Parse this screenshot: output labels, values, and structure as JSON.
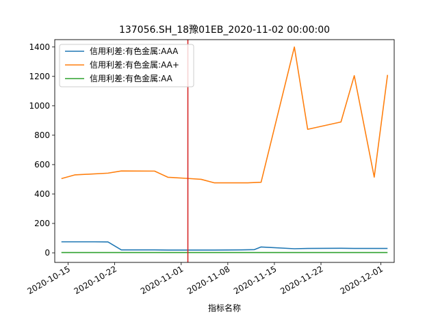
{
  "chart_data": {
    "type": "line",
    "title": "137056.SH_18豫01EB_2020-11-02 00:00:00",
    "xlabel": "指标名称",
    "ylabel": "",
    "x_ticks": [
      "2020-10-15",
      "2020-10-22",
      "2020-11-01",
      "2020-11-08",
      "2020-11-15",
      "2020-11-22",
      "2020-12-01"
    ],
    "y_ticks": [
      0,
      200,
      400,
      600,
      800,
      1000,
      1200,
      1400
    ],
    "xlim": [
      "2020-10-13",
      "2020-12-03"
    ],
    "ylim": [
      -65,
      1450
    ],
    "marker_date": "2020-11-02",
    "marker_color": "#d62728",
    "legend_position": "top-left",
    "grid": false,
    "series": [
      {
        "name": "信用利差:有色金属:AAA",
        "color": "#1f77b4",
        "points": [
          [
            "2020-10-14",
            75
          ],
          [
            "2020-10-16",
            75
          ],
          [
            "2020-10-19",
            75
          ],
          [
            "2020-10-21",
            74
          ],
          [
            "2020-10-23",
            20
          ],
          [
            "2020-10-28",
            20
          ],
          [
            "2020-10-30",
            19
          ],
          [
            "2020-11-03",
            19
          ],
          [
            "2020-11-05",
            19
          ],
          [
            "2020-11-06",
            19
          ],
          [
            "2020-11-10",
            20
          ],
          [
            "2020-11-12",
            22
          ],
          [
            "2020-11-13",
            40
          ],
          [
            "2020-11-18",
            28
          ],
          [
            "2020-11-20",
            30
          ],
          [
            "2020-11-25",
            31
          ],
          [
            "2020-11-27",
            30
          ],
          [
            "2020-11-30",
            30
          ],
          [
            "2020-12-02",
            30
          ]
        ]
      },
      {
        "name": "信用利差:有色金属:AA+",
        "color": "#ff7f0e",
        "points": [
          [
            "2020-10-14",
            505
          ],
          [
            "2020-10-16",
            530
          ],
          [
            "2020-10-21",
            542
          ],
          [
            "2020-10-23",
            557
          ],
          [
            "2020-10-28",
            556
          ],
          [
            "2020-10-30",
            514
          ],
          [
            "2020-11-02",
            506
          ],
          [
            "2020-11-04",
            500
          ],
          [
            "2020-11-06",
            476
          ],
          [
            "2020-11-11",
            476
          ],
          [
            "2020-11-13",
            480
          ],
          [
            "2020-11-18",
            1400
          ],
          [
            "2020-11-20",
            840
          ],
          [
            "2020-11-25",
            890
          ],
          [
            "2020-11-27",
            1205
          ],
          [
            "2020-11-30",
            515
          ],
          [
            "2020-12-02",
            1210
          ]
        ]
      },
      {
        "name": "信用利差:有色金属:AA",
        "color": "#2ca02c",
        "points": [
          [
            "2020-10-14",
            2
          ],
          [
            "2020-10-21",
            2
          ],
          [
            "2020-10-28",
            2
          ],
          [
            "2020-11-04",
            2
          ],
          [
            "2020-11-11",
            2
          ],
          [
            "2020-11-18",
            2
          ],
          [
            "2020-11-25",
            2
          ],
          [
            "2020-12-02",
            2
          ]
        ]
      }
    ]
  }
}
